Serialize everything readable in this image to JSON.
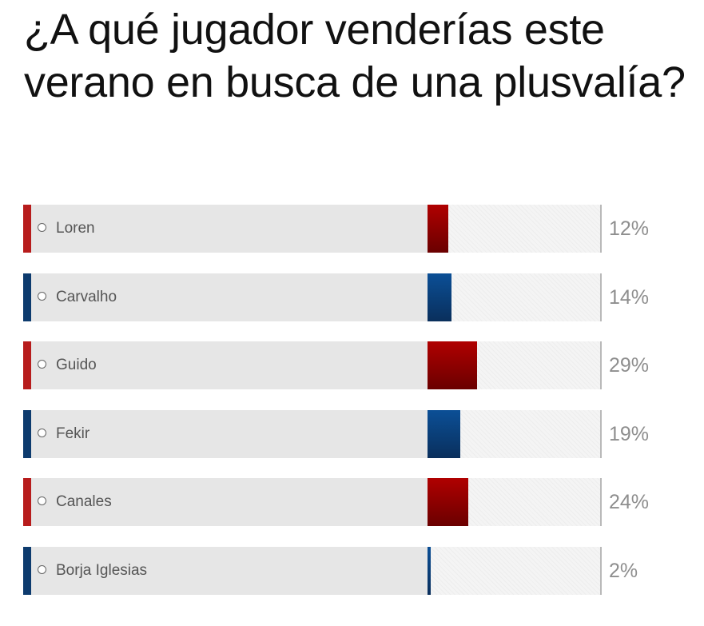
{
  "poll": {
    "question": "¿A qué jugador venderías este verano en busca de una plusvalía?",
    "options": [
      {
        "label": "Loren",
        "percent_label": "12%",
        "percent": 12,
        "color": "red"
      },
      {
        "label": "Carvalho",
        "percent_label": "14%",
        "percent": 14,
        "color": "blue"
      },
      {
        "label": "Guido",
        "percent_label": "29%",
        "percent": 29,
        "color": "red"
      },
      {
        "label": "Fekir",
        "percent_label": "19%",
        "percent": 19,
        "color": "blue"
      },
      {
        "label": "Canales",
        "percent_label": "24%",
        "percent": 24,
        "color": "red"
      },
      {
        "label": "Borja Iglesias",
        "percent_label": "2%",
        "percent": 2,
        "color": "blue"
      }
    ]
  },
  "colors": {
    "red_accent": "#b71c1c",
    "blue_accent": "#0d3b6e",
    "bar_background": "#e6e6e6",
    "percent_text": "#8e8e8e"
  }
}
